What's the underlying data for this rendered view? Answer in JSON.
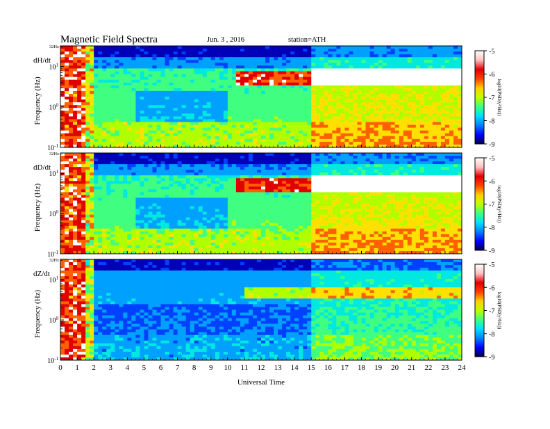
{
  "header": {
    "title": "Magnetic Field Spectra",
    "date": "Jun. 3 , 2016",
    "station": "station=ATH"
  },
  "colors": {
    "colormap": [
      "#00004a",
      "#0000b8",
      "#0040ff",
      "#00a0ff",
      "#00e8e0",
      "#40ff80",
      "#b0ff00",
      "#ffe000",
      "#ff6000",
      "#e00000",
      "#ffffff"
    ]
  },
  "chart_data": [
    {
      "type": "heatmap",
      "panel_label": "dH/dt",
      "ylabel": "Frequency (Hz)",
      "y_top_label": "32Hz",
      "y_scale": "log",
      "ylim": [
        0.1,
        32
      ],
      "yticks": [
        {
          "value": 0.1,
          "base": "10",
          "exp": "-1"
        },
        {
          "value": 1,
          "base": "10",
          "exp": "0"
        },
        {
          "value": 10,
          "base": "10",
          "exp": "1"
        }
      ],
      "xlim": [
        0,
        24
      ],
      "colorbar": {
        "label": "log10(PSD(γ²/Hz))",
        "min": -9,
        "max": -5,
        "ticks": [
          "-5",
          "-6",
          "-7",
          "-8",
          "-9"
        ]
      }
    },
    {
      "type": "heatmap",
      "panel_label": "dD/dt",
      "ylabel": "Frequency (Hz)",
      "y_top_label": "32Hz",
      "y_scale": "log",
      "ylim": [
        0.1,
        32
      ],
      "yticks": [
        {
          "value": 0.1,
          "base": "10",
          "exp": "-1"
        },
        {
          "value": 1,
          "base": "10",
          "exp": "0"
        },
        {
          "value": 10,
          "base": "10",
          "exp": "1"
        }
      ],
      "xlim": [
        0,
        24
      ],
      "colorbar": {
        "label": "log10(PSD(γ²/Hz))",
        "min": -9,
        "max": -5,
        "ticks": [
          "-5",
          "-6",
          "-7",
          "-8",
          "-9"
        ]
      }
    },
    {
      "type": "heatmap",
      "panel_label": "dZ/dt",
      "ylabel": "Frequency (Hz)",
      "y_top_label": "32Hz",
      "y_scale": "log",
      "ylim": [
        0.1,
        32
      ],
      "yticks": [
        {
          "value": 0.1,
          "base": "10",
          "exp": "-1"
        },
        {
          "value": 1,
          "base": "10",
          "exp": "0"
        },
        {
          "value": 10,
          "base": "10",
          "exp": "1"
        }
      ],
      "xlim": [
        0,
        24
      ],
      "xlabel": "Universal Time",
      "xticks": [
        "0",
        "1",
        "2",
        "3",
        "4",
        "5",
        "6",
        "7",
        "8",
        "9",
        "10",
        "11",
        "12",
        "13",
        "14",
        "15",
        "16",
        "17",
        "18",
        "19",
        "20",
        "21",
        "22",
        "23",
        "24"
      ],
      "colorbar": {
        "label": "log10(PSD(γ²/Hz))",
        "min": -9,
        "max": -5,
        "ticks": [
          "-5",
          "-6",
          "-7",
          "-8",
          "-9"
        ]
      }
    }
  ]
}
